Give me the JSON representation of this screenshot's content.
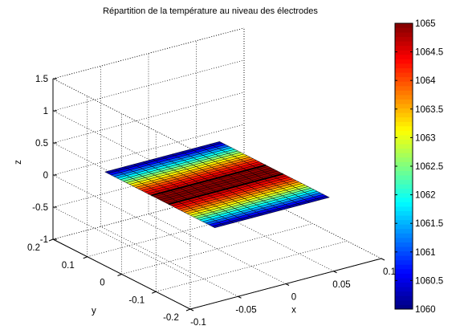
{
  "figure": {
    "background": "#ffffff",
    "axis_color": "#000000"
  },
  "chart_data": {
    "type": "surface",
    "title": "Répartition de la température au niveau des électrodes",
    "xlabel": "x",
    "ylabel": "y",
    "zlabel": "z",
    "xlim": [
      -0.1,
      0.1
    ],
    "ylim": [
      -0.2,
      0.2
    ],
    "zlim": [
      -1,
      1.5
    ],
    "x_ticks": [
      -0.1,
      -0.05,
      0,
      0.05,
      0.1
    ],
    "x_tick_labels": [
      "-0.1",
      "-0.05",
      "0",
      "0.05",
      "0.1"
    ],
    "y_ticks": [
      -0.2,
      -0.1,
      0,
      0.1,
      0.2
    ],
    "y_tick_labels": [
      "-0.2",
      "-0.1",
      "0",
      "0.1",
      "0.2"
    ],
    "z_ticks": [
      -1,
      -0.5,
      0,
      0.5,
      1,
      1.5
    ],
    "z_tick_labels": [
      "-1",
      "-0.5",
      "0",
      "0.5",
      "1",
      "1.5"
    ],
    "grid": true,
    "grid_style": "dotted",
    "colormap": "jet",
    "surface": {
      "plane_z": 0,
      "x_range": [
        -0.06,
        0.06
      ],
      "y_range": [
        -0.16,
        0.16
      ],
      "temperature_min": 1060,
      "temperature_max": 1065,
      "temperature_profile": "maximum (about 1065) in the central band, decreasing to about 1060 at the two ends",
      "electrode_lines_y": [
        -0.025,
        0.025
      ]
    },
    "colorbar": {
      "location": "right",
      "range": [
        1060,
        1065
      ],
      "ticks": [
        1060,
        1060.5,
        1061,
        1061.5,
        1062,
        1062.5,
        1063,
        1063.5,
        1064,
        1064.5,
        1065
      ],
      "tick_labels": [
        "1060",
        "1060.5",
        "1061",
        "1061.5",
        "1062",
        "1062.5",
        "1063",
        "1063.5",
        "1064",
        "1064.5",
        "1065"
      ]
    }
  }
}
